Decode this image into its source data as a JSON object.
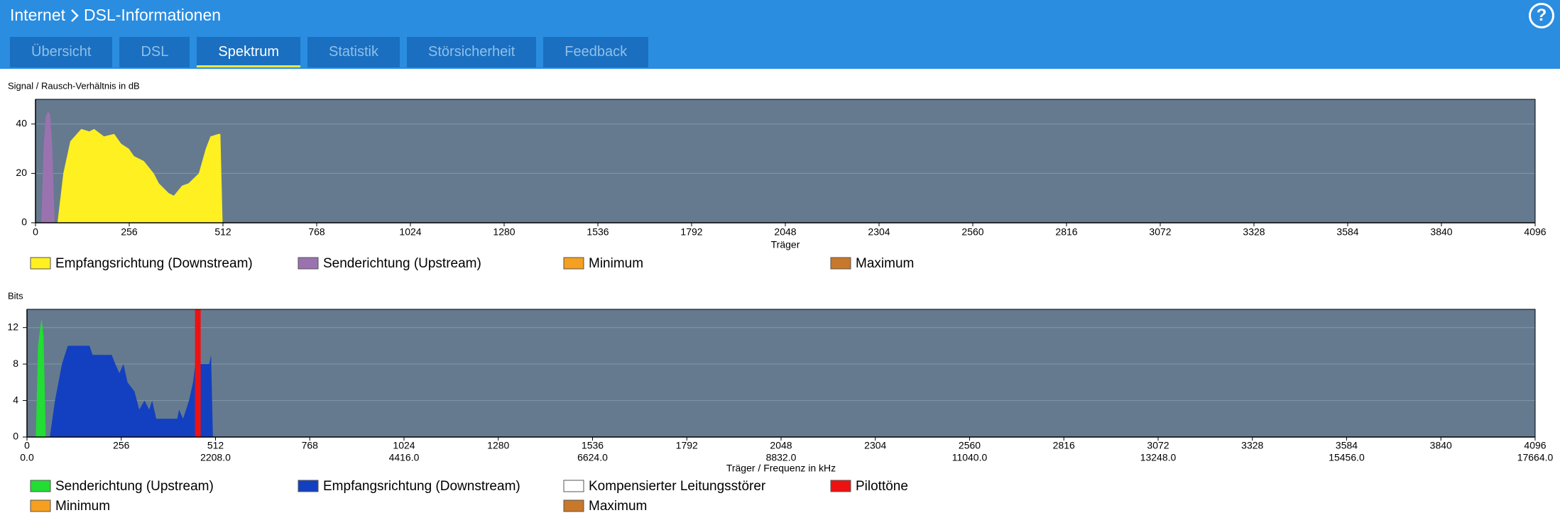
{
  "header": {
    "breadcrumb": [
      "Internet",
      "DSL-Informationen"
    ],
    "help": "?"
  },
  "tabs": [
    "Übersicht",
    "DSL",
    "Spektrum",
    "Statistik",
    "Störsicherheit",
    "Feedback"
  ],
  "active_tab": 2,
  "chart_data": [
    {
      "type": "area",
      "title": "Signal / Rausch-Verhältnis in dB",
      "x_label": "Träger",
      "xlim": [
        0,
        4096
      ],
      "xticks": [
        0,
        256,
        512,
        768,
        1024,
        1280,
        1536,
        1792,
        2048,
        2304,
        2560,
        2816,
        3072,
        3328,
        3584,
        3840,
        4096
      ],
      "ylim": [
        0,
        50
      ],
      "yticks": [
        0,
        20,
        40
      ],
      "grid": true,
      "series": [
        {
          "name": "Empfangsrichtung (Downstream)",
          "color": "#fff022",
          "x": [
            60,
            76,
            95,
            125,
            147,
            160,
            187,
            215,
            234,
            255,
            269,
            296,
            323,
            337,
            364,
            378,
            400,
            418,
            446,
            465,
            478,
            500,
            505,
            511
          ],
          "values": [
            0,
            20,
            33,
            38,
            37,
            38,
            35,
            36,
            32,
            30,
            27,
            25,
            20,
            16,
            12,
            11,
            15,
            16,
            20,
            30,
            35,
            36,
            36,
            0
          ]
        },
        {
          "name": "Senderichtung (Upstream)",
          "color": "#9b72b0",
          "x": [
            16,
            22,
            28,
            34,
            40,
            46,
            52
          ],
          "values": [
            0,
            30,
            43,
            45,
            44,
            30,
            0
          ]
        },
        {
          "name": "Minimum",
          "color": "#f5a020",
          "x": [],
          "values": []
        },
        {
          "name": "Maximum",
          "color": "#c8782a",
          "x": [],
          "values": []
        }
      ]
    },
    {
      "type": "area",
      "title": "Bits",
      "x_label": "Träger / Frequenz in kHz",
      "xlim": [
        0,
        4096
      ],
      "xticks": [
        0,
        256,
        512,
        768,
        1024,
        1280,
        1536,
        1792,
        2048,
        2304,
        2560,
        2816,
        3072,
        3328,
        3584,
        3840,
        4096
      ],
      "x2lim": [
        0,
        17664
      ],
      "x2ticks": [
        {
          "value": 0,
          "label": "0.0"
        },
        {
          "value": 2208,
          "label": "2208.0"
        },
        {
          "value": 4416,
          "label": "4416.0"
        },
        {
          "value": 6624,
          "label": "6624.0"
        },
        {
          "value": 8832,
          "label": "8832.0"
        },
        {
          "value": 11040,
          "label": "11040.0"
        },
        {
          "value": 13248,
          "label": "13248.0"
        },
        {
          "value": 15456,
          "label": "15456.0"
        },
        {
          "value": 17664,
          "label": "17664.0"
        }
      ],
      "ylim": [
        0,
        14
      ],
      "yticks": [
        0,
        4,
        8,
        12
      ],
      "grid": true,
      "series": [
        {
          "name": "Senderichtung (Upstream)",
          "color": "#22dd33",
          "x": [
            24,
            30,
            36,
            40,
            45,
            51
          ],
          "values": [
            0,
            10,
            12,
            13,
            11,
            0
          ]
        },
        {
          "name": "Empfangsrichtung (Downstream)",
          "color": "#1240c0",
          "x": [
            62,
            76,
            95,
            111,
            170,
            178,
            230,
            240,
            251,
            262,
            273,
            292,
            305,
            319,
            332,
            340,
            351,
            408,
            413,
            424,
            440,
            451,
            457,
            473,
            495,
            500,
            505
          ],
          "values": [
            0,
            4,
            8,
            10,
            10,
            9,
            9,
            8,
            7,
            8,
            6,
            5,
            3,
            4,
            3,
            4,
            2,
            2,
            3,
            2,
            4,
            6,
            8,
            8,
            8,
            9,
            0
          ]
        },
        {
          "name": "Kompensierter Leitungsstörer",
          "color": "#ffffff",
          "x": [],
          "values": []
        },
        {
          "name": "Pilottöne",
          "color": "#ee1111",
          "mark": "bar",
          "x": [
            464
          ],
          "values": [
            14
          ]
        },
        {
          "name": "Minimum",
          "color": "#f5a020",
          "x": [],
          "values": []
        },
        {
          "name": "Maximum",
          "color": "#c8782a",
          "x": [],
          "values": []
        }
      ]
    }
  ]
}
